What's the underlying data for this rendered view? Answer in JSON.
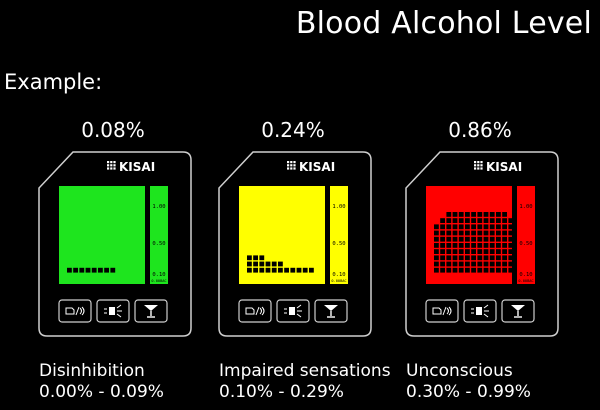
{
  "header": {
    "title": "Blood Alcohol Level",
    "subtitle": "Example:"
  },
  "brand": "KISAI",
  "scale_labels": [
    "1.00",
    "0.50",
    "0.10",
    "0.00BAC"
  ],
  "devices": [
    {
      "percent": "0.08%",
      "status": "Disinhibition",
      "range": "0.00% - 0.09%",
      "screen_color": "#1ee51e",
      "bars": [
        1,
        1,
        1,
        1,
        1,
        1,
        1,
        1
      ]
    },
    {
      "percent": "0.24%",
      "status": "Impaired sensations",
      "range": "0.10% - 0.29%",
      "screen_color": "#ffff00",
      "bars": [
        3,
        3,
        3,
        2,
        2,
        2,
        1,
        1,
        1,
        1,
        1
      ]
    },
    {
      "percent": "0.86%",
      "status": "Unconscious",
      "range": "0.30% - 0.99%",
      "screen_color": "#ff0000",
      "bars": [
        8,
        9,
        10,
        10,
        10,
        10,
        10,
        10,
        10,
        10,
        10,
        10,
        9
      ]
    }
  ],
  "buttons": [
    {
      "icon": "mode-toggle-icon"
    },
    {
      "icon": "light-icon"
    },
    {
      "icon": "cocktail-glass-icon"
    }
  ]
}
